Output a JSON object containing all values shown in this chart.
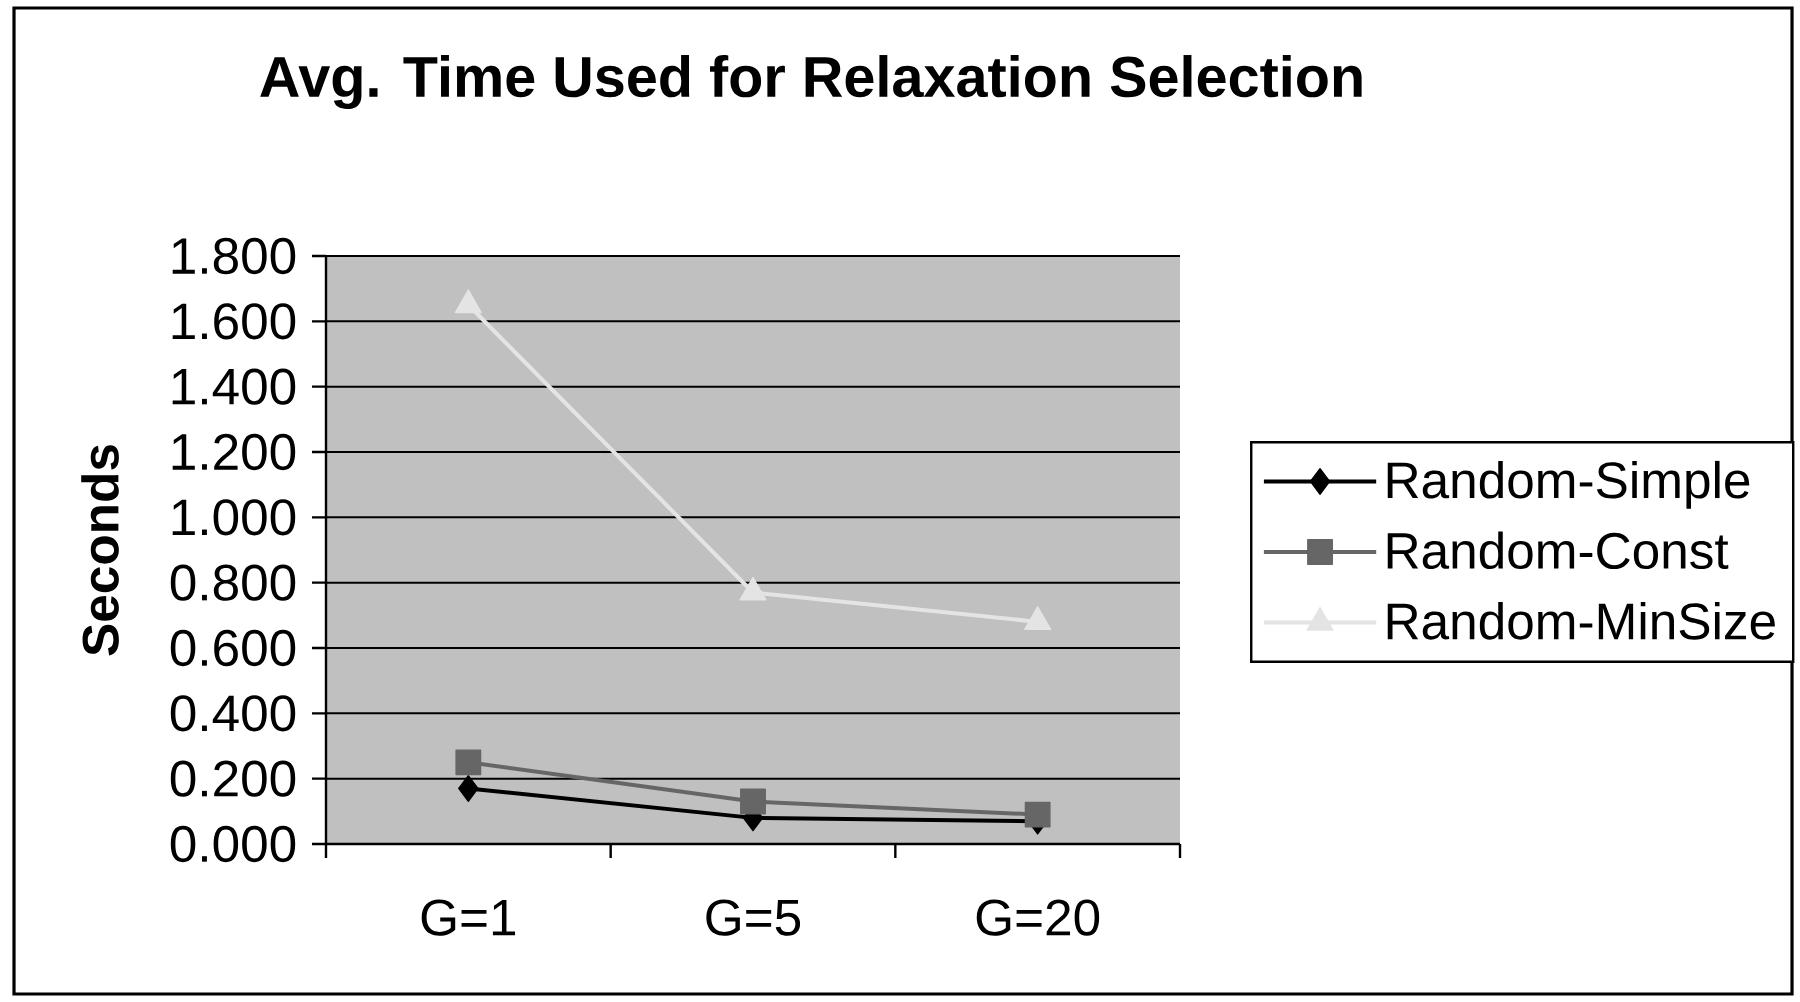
{
  "chart_data": {
    "type": "line",
    "title": "Avg. Time Used for Relaxation Selection",
    "ylabel": "Seconds",
    "categories": [
      "G=1",
      "G=5",
      "G=20"
    ],
    "series": [
      {
        "name": "Random-Simple",
        "color": "#000000",
        "marker": "diamond",
        "values": [
          0.17,
          0.08,
          0.07
        ]
      },
      {
        "name": "Random-Const",
        "color": "#666666",
        "marker": "square",
        "values": [
          0.25,
          0.13,
          0.09
        ]
      },
      {
        "name": "Random-MinSize",
        "color": "#e4e4e4",
        "marker": "triangle",
        "values": [
          1.65,
          0.77,
          0.68
        ]
      }
    ],
    "ylim": [
      0,
      1.8
    ],
    "yticks": [
      {
        "value": 0,
        "label": "0.000"
      },
      {
        "value": 0.2,
        "label": "0.200"
      },
      {
        "value": 0.4,
        "label": "0.400"
      },
      {
        "value": 0.6,
        "label": "0.600"
      },
      {
        "value": 0.8,
        "label": "0.800"
      },
      {
        "value": 1.0,
        "label": "1.000"
      },
      {
        "value": 1.2,
        "label": "1.200"
      },
      {
        "value": 1.4,
        "label": "1.400"
      },
      {
        "value": 1.6,
        "label": "1.600"
      },
      {
        "value": 1.8,
        "label": "1.800"
      }
    ],
    "grid": "y",
    "legend": "right"
  }
}
